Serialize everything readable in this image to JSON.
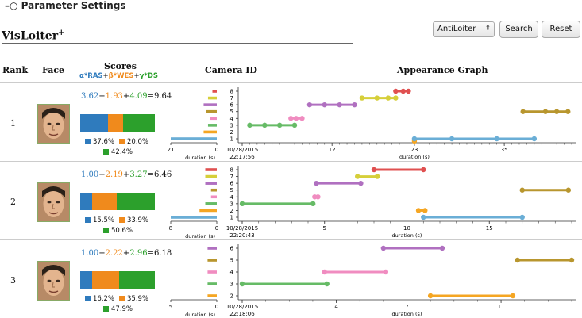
{
  "panel": {
    "title": "Parameter Settings"
  },
  "app": {
    "title": "VisLoiter",
    "title_sup": "+"
  },
  "controls": {
    "select_value": "AntiLoiter",
    "search_label": "Search",
    "reset_label": "Reset"
  },
  "headers": {
    "rank": "Rank",
    "face": "Face",
    "scores": "Scores",
    "camera": "Camera ID",
    "graph": "Appearance Graph"
  },
  "formula": {
    "parts": [
      "α*RAS",
      "+",
      "β*WES",
      "+",
      "γ*DS"
    ]
  },
  "colors": {
    "ras": "#2f7bbd",
    "wes": "#f08a1c",
    "ds": "#2ca02c",
    "cam": {
      "1": "#6aaed6",
      "2": "#f5a623",
      "3": "#66bb66",
      "4": "#f08cc0",
      "5": "#b8962e",
      "6": "#b070c0",
      "7": "#d6cf3a",
      "8": "#e05050"
    }
  },
  "duration_label": "duration (s)",
  "rows": [
    {
      "rank": "1",
      "face_icon": "face-photo",
      "ras": "3.62",
      "wes": "1.93",
      "ds": "4.09",
      "total": "=9.64",
      "pct_ras": "37.6%",
      "pct_wes": "20.0%",
      "pct_ds": "42.4%",
      "ras_frac": 0.376,
      "wes_frac": 0.2,
      "ds_frac": 0.424,
      "cams": [
        8,
        7,
        6,
        5,
        4,
        3,
        2,
        1
      ],
      "durations": [
        2,
        4,
        6,
        5,
        3,
        4,
        6,
        21
      ],
      "dur_max": 21,
      "dur_ticks": [
        "21",
        "0"
      ],
      "time_ticks": [
        "10/28/2015 22:17:56",
        "12",
        "23",
        "35"
      ],
      "time_tick_pos": [
        0,
        12,
        23,
        35
      ],
      "t_max": 44,
      "segments": [
        {
          "cam": 8,
          "pts": [
            20.5,
            21.5,
            22.2
          ]
        },
        {
          "cam": 7,
          "pts": [
            16,
            18,
            19.5,
            20.5
          ]
        },
        {
          "cam": 6,
          "pts": [
            9,
            11,
            13,
            15
          ]
        },
        {
          "cam": 5,
          "pts": [
            37.5,
            40.5,
            42,
            43.5
          ]
        },
        {
          "cam": 4,
          "pts": [
            6.5,
            7.2,
            8
          ]
        },
        {
          "cam": 3,
          "pts": [
            1,
            3,
            5,
            7
          ]
        },
        {
          "cam": 2,
          "pts": [
            23
          ]
        },
        {
          "cam": 1,
          "pts": [
            23,
            28,
            34,
            39
          ]
        }
      ]
    },
    {
      "rank": "2",
      "face_icon": "face-photo",
      "ras": "1.00",
      "wes": "2.19",
      "ds": "3.27",
      "total": "=6.46",
      "pct_ras": "15.5%",
      "pct_wes": "33.9%",
      "pct_ds": "50.6%",
      "ras_frac": 0.155,
      "wes_frac": 0.339,
      "ds_frac": 0.506,
      "cams": [
        8,
        7,
        6,
        5,
        4,
        3,
        2,
        1
      ],
      "durations": [
        2,
        2,
        2,
        1,
        1,
        2,
        3,
        8
      ],
      "dur_max": 8,
      "dur_ticks": [
        "8",
        "0"
      ],
      "time_ticks": [
        "10/28/2015 22:20:43",
        "5",
        "10",
        "15"
      ],
      "time_tick_pos": [
        0,
        5,
        10,
        15
      ],
      "t_max": 20,
      "segments": [
        {
          "cam": 8,
          "pts": [
            8,
            11
          ]
        },
        {
          "cam": 7,
          "pts": [
            7,
            8.2
          ]
        },
        {
          "cam": 6,
          "pts": [
            4.5,
            7.2
          ]
        },
        {
          "cam": 5,
          "pts": [
            17,
            19.8
          ]
        },
        {
          "cam": 4,
          "pts": [
            4.4,
            4.6
          ]
        },
        {
          "cam": 3,
          "pts": [
            0,
            4.3
          ]
        },
        {
          "cam": 2,
          "pts": [
            10.7,
            11.1
          ]
        },
        {
          "cam": 1,
          "pts": [
            11,
            17
          ]
        }
      ]
    },
    {
      "rank": "3",
      "face_icon": "face-photo",
      "ras": "1.00",
      "wes": "2.22",
      "ds": "2.96",
      "total": "=6.18",
      "pct_ras": "16.2%",
      "pct_wes": "35.9%",
      "pct_ds": "47.9%",
      "ras_frac": 0.162,
      "wes_frac": 0.359,
      "ds_frac": 0.479,
      "cams": [
        6,
        5,
        4,
        3,
        2
      ],
      "durations": [
        1,
        1,
        1,
        1,
        1
      ],
      "dur_max": 5,
      "dur_ticks": [
        "5",
        "0"
      ],
      "time_ticks": [
        "10/28/2015 22:18:06",
        "4",
        "7",
        "11"
      ],
      "time_tick_pos": [
        0,
        4,
        7,
        11
      ],
      "t_max": 14,
      "segments": [
        {
          "cam": 6,
          "pts": [
            6,
            8.5
          ]
        },
        {
          "cam": 5,
          "pts": [
            11.7,
            14
          ]
        },
        {
          "cam": 4,
          "pts": [
            3.5,
            6.1
          ]
        },
        {
          "cam": 3,
          "pts": [
            0,
            3.6
          ]
        },
        {
          "cam": 2,
          "pts": [
            8,
            11.5
          ]
        }
      ]
    }
  ]
}
